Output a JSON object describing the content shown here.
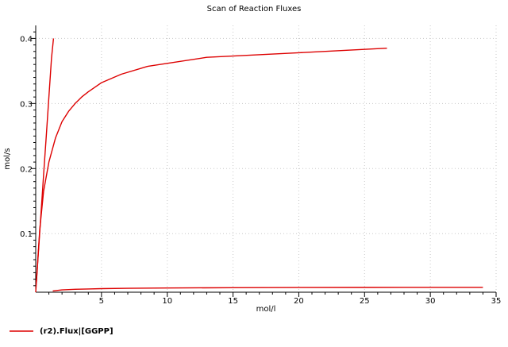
{
  "chart_data": {
    "type": "line",
    "title": "Scan of Reaction Fluxes",
    "xlabel": "mol/l",
    "ylabel": "mol/s",
    "xlim": [
      0,
      35
    ],
    "ylim": [
      0.01,
      0.42
    ],
    "xticks": [
      5,
      10,
      15,
      20,
      25,
      30,
      35
    ],
    "yticks": [
      0.1,
      0.2,
      0.3,
      0.4
    ],
    "xtick_labels": [
      "5",
      "10",
      "15",
      "20",
      "25",
      "30",
      "35"
    ],
    "ytick_labels": [
      "0.1",
      "0.2",
      "0.3",
      "0.4"
    ],
    "grid": true,
    "legend_position": "bottom-left",
    "series_color": "#dd0000",
    "legend": [
      "(r2).Flux|[GGPP]"
    ],
    "series": [
      {
        "name": "(r2).Flux|[GGPP]",
        "x": [
          0.0,
          0.2,
          0.4,
          0.6,
          0.8,
          1.0,
          1.2,
          1.35
        ],
        "y": [
          0.01,
          0.07,
          0.13,
          0.19,
          0.25,
          0.31,
          0.37,
          0.4
        ]
      },
      {
        "name": "(r2).Flux|[GGPP]",
        "x": [
          0.05,
          0.3,
          0.6,
          1.0,
          1.5,
          2.0,
          2.5,
          3.0,
          3.5,
          4.0,
          5.0,
          6.5,
          8.5,
          13.0,
          20.0,
          26.7
        ],
        "y": [
          0.025,
          0.105,
          0.165,
          0.21,
          0.247,
          0.272,
          0.288,
          0.3,
          0.31,
          0.318,
          0.332,
          0.345,
          0.357,
          0.371,
          0.378,
          0.385
        ]
      },
      {
        "name": "(r2).Flux|[GGPP]",
        "x": [
          1.3,
          2.0,
          3.0,
          4.0,
          5.0,
          7.0,
          10.0,
          15.0,
          20.0,
          25.0,
          30.0,
          34.0
        ],
        "y": [
          0.012,
          0.0135,
          0.0145,
          0.015,
          0.0155,
          0.016,
          0.0165,
          0.017,
          0.0172,
          0.0173,
          0.0174,
          0.0175
        ]
      }
    ]
  }
}
